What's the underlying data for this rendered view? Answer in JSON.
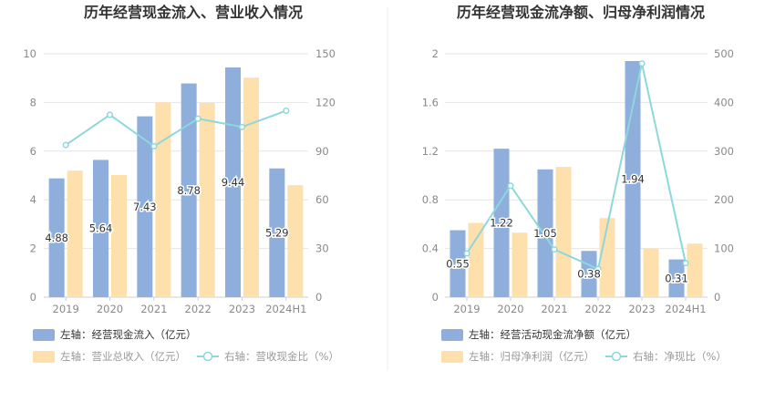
{
  "charts": [
    {
      "title": "历年经营现金流入、营业收入情况",
      "categories": [
        "2019",
        "2020",
        "2021",
        "2022",
        "2023",
        "2024H1"
      ],
      "left_ticks": [
        "0",
        "2",
        "4",
        "6",
        "8",
        "10"
      ],
      "right_ticks": [
        "0",
        "30",
        "60",
        "90",
        "120",
        "150"
      ],
      "legend": [
        {
          "label": "左轴：经营现金流入（亿元）",
          "color": "#8eaedb",
          "kind": "bar",
          "muted": false
        },
        {
          "label": "左轴：营业总收入（亿元）",
          "color": "#fde0ac",
          "kind": "bar",
          "muted": true
        },
        {
          "label": "右轴：营收现金比（%）",
          "color": "#8dd8dc",
          "kind": "line",
          "muted": true
        }
      ]
    },
    {
      "title": "历年经营现金流净额、归母净利润情况",
      "categories": [
        "2019",
        "2020",
        "2021",
        "2022",
        "2023",
        "2024H1"
      ],
      "left_ticks": [
        "0",
        "0.4",
        "0.8",
        "1.2",
        "1.6",
        "2"
      ],
      "right_ticks": [
        "0",
        "100",
        "200",
        "300",
        "400",
        "500"
      ],
      "legend": [
        {
          "label": "左轴：经营活动现金流净额（亿元）",
          "color": "#8eaedb",
          "kind": "bar",
          "muted": false
        },
        {
          "label": "左轴：归母净利润（亿元）",
          "color": "#fde0ac",
          "kind": "bar",
          "muted": true
        },
        {
          "label": "右轴：净现比（%）",
          "color": "#8dd8dc",
          "kind": "line",
          "muted": true
        }
      ]
    }
  ],
  "chart_data": [
    {
      "type": "bar",
      "title": "历年经营现金流入、营业收入情况",
      "categories": [
        "2019",
        "2020",
        "2021",
        "2022",
        "2023",
        "2024H1"
      ],
      "ylim_left": [
        0,
        10
      ],
      "ylim_right": [
        0,
        150
      ],
      "grid": true,
      "legend_position": "bottom",
      "series": [
        {
          "name": "左轴：经营现金流入（亿元）",
          "axis": "left",
          "type": "bar",
          "color": "#8eaedb",
          "values": [
            4.88,
            5.64,
            7.43,
            8.78,
            9.44,
            5.29
          ],
          "labels": [
            "4.88",
            "5.64",
            "7.43",
            "8.78",
            "9.44",
            "5.29"
          ]
        },
        {
          "name": "左轴：营业总收入（亿元）",
          "axis": "left",
          "type": "bar",
          "color": "#fde0ac",
          "values": [
            5.2,
            5.02,
            8.0,
            7.98,
            9.02,
            4.6
          ]
        },
        {
          "name": "右轴：营收现金比（%）",
          "axis": "right",
          "type": "line",
          "color": "#8dd8dc",
          "values": [
            93.8,
            112.4,
            93.0,
            110.0,
            104.9,
            114.9
          ]
        }
      ]
    },
    {
      "type": "bar",
      "title": "历年经营现金流净额、归母净利润情况",
      "categories": [
        "2019",
        "2020",
        "2021",
        "2022",
        "2023",
        "2024H1"
      ],
      "ylim_left": [
        0,
        2
      ],
      "ylim_right": [
        0,
        500
      ],
      "grid": true,
      "legend_position": "bottom",
      "series": [
        {
          "name": "左轴：经营活动现金流净额（亿元）",
          "axis": "left",
          "type": "bar",
          "color": "#8eaedb",
          "values": [
            0.55,
            1.22,
            1.05,
            0.38,
            1.94,
            0.31
          ],
          "labels": [
            "0.55",
            "1.22",
            "1.05",
            "0.38",
            "1.94",
            "0.31"
          ]
        },
        {
          "name": "左轴：归母净利润（亿元）",
          "axis": "left",
          "type": "bar",
          "color": "#fde0ac",
          "values": [
            0.61,
            0.53,
            1.07,
            0.65,
            0.4,
            0.44
          ]
        },
        {
          "name": "右轴：净现比（%）",
          "axis": "right",
          "type": "line",
          "color": "#8dd8dc",
          "values": [
            90,
            229,
            98,
            58,
            480,
            70
          ]
        }
      ]
    }
  ]
}
